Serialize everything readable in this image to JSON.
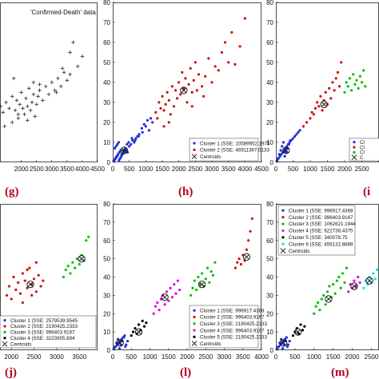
{
  "chart_data": [
    {
      "panel": "g",
      "type": "scatter",
      "caption": "(g)",
      "annotation": "'Confirmed-Death' data",
      "xticks": [
        "2000",
        "2500",
        "3000",
        "3500",
        "4000",
        "4500"
      ],
      "yticks": [],
      "xlim": [
        1300,
        4500
      ],
      "ylim": [
        0,
        80
      ],
      "marker": "plus",
      "series": [
        {
          "name": "",
          "color": "#222222",
          "x": [
            1320,
            1400,
            1500,
            1600,
            1700,
            1800,
            1850,
            1900,
            1950,
            2000,
            2050,
            2100,
            2150,
            2200,
            2250,
            2300,
            2350,
            2400,
            2450,
            2500,
            2550,
            2600,
            2700,
            2800,
            2900,
            3000,
            3100,
            3200,
            3300,
            3400,
            3500,
            3600,
            3700,
            3850,
            4000,
            1700,
            1900,
            2200,
            2400,
            2600,
            3150,
            3350,
            3600,
            1450,
            1750
          ],
          "y": [
            28,
            25,
            30,
            27,
            33,
            26,
            31,
            22,
            29,
            35,
            27,
            24,
            32,
            28,
            37,
            26,
            30,
            34,
            23,
            29,
            33,
            36,
            31,
            38,
            34,
            40,
            36,
            42,
            38,
            45,
            41,
            55,
            60,
            48,
            53,
            20,
            24,
            21,
            40,
            39,
            35,
            47,
            44,
            18,
            42
          ]
        }
      ]
    },
    {
      "panel": "h",
      "type": "scatter",
      "caption": "(h)",
      "xticks": [
        "0",
        "500",
        "1000",
        "1500",
        "2000",
        "2500",
        "3000",
        "3500",
        "4000",
        "4500"
      ],
      "yticks": [
        "0",
        "10",
        "20",
        "30",
        "40",
        "50",
        "60",
        "70",
        "80"
      ],
      "xlim": [
        0,
        4500
      ],
      "ylim": [
        0,
        80
      ],
      "legend_position": "bottom-right",
      "series": [
        {
          "name": "Cluster 1 (SSE: 10589652.1975",
          "color": "#1f2fd0",
          "x": [
            40,
            80,
            120,
            160,
            200,
            240,
            60,
            100,
            140,
            180,
            220,
            260,
            300,
            350,
            400,
            450,
            500,
            550,
            600,
            650,
            700,
            750,
            800,
            900,
            1000,
            1100,
            1200,
            30,
            70,
            110,
            150,
            190,
            230,
            270,
            320,
            380,
            430,
            480,
            580,
            680,
            780,
            880,
            950,
            1050,
            1150
          ],
          "y": [
            1,
            2,
            3,
            4,
            5,
            6,
            7,
            8,
            9,
            10,
            2,
            3,
            4,
            5,
            6,
            5,
            8,
            9,
            11,
            10,
            12,
            13,
            14,
            15,
            18,
            16,
            20,
            0.5,
            1.5,
            2.5,
            3.5,
            1,
            2,
            4,
            6,
            7,
            9,
            10,
            12,
            11,
            13,
            17,
            19,
            21,
            22
          ]
        },
        {
          "name": "Cluster 2 (SSE: 46911367.0133",
          "color": "#d01010",
          "x": [
            1300,
            1350,
            1400,
            1450,
            1500,
            1550,
            1600,
            1650,
            1700,
            1750,
            1800,
            1850,
            1900,
            1950,
            2000,
            2050,
            2100,
            2150,
            2200,
            2250,
            2300,
            2350,
            2400,
            2450,
            2500,
            2550,
            2600,
            2700,
            2800,
            2900,
            3000,
            3100,
            3200,
            3300,
            3400,
            3500,
            3600,
            3700,
            3850,
            4000,
            1550,
            1700,
            2400,
            2750
          ],
          "y": [
            25,
            22,
            30,
            27,
            33,
            26,
            29,
            35,
            31,
            24,
            38,
            28,
            36,
            32,
            40,
            34,
            45,
            37,
            42,
            30,
            39,
            47,
            35,
            41,
            50,
            36,
            44,
            38,
            43,
            52,
            40,
            48,
            46,
            55,
            60,
            50,
            65,
            49,
            58,
            72,
            18,
            20,
            28,
            33
          ]
        }
      ],
      "centroids_label": "Centroids",
      "centroids": [
        {
          "x": 350,
          "y": 6
        },
        {
          "x": 2150,
          "y": 36
        }
      ]
    },
    {
      "panel": "i",
      "type": "scatter",
      "caption": "(i",
      "xticks": [
        "0",
        "500",
        "1000",
        "1500",
        "2000",
        "2500"
      ],
      "yticks": [
        "0",
        "10",
        "20",
        "30",
        "40",
        "50",
        "60",
        "70",
        "80"
      ],
      "xlim": [
        0,
        3000
      ],
      "ylim": [
        0,
        80
      ],
      "legend_position": "bottom-right",
      "series": [
        {
          "name": "Cl",
          "color": "#1f2fd0",
          "x": [
            40,
            80,
            120,
            160,
            200,
            240,
            280,
            320,
            360,
            400,
            450,
            500,
            550,
            600,
            650,
            700,
            60,
            100,
            140,
            180,
            220,
            260,
            300,
            340,
            380,
            420
          ],
          "y": [
            1,
            2,
            3,
            4,
            5,
            6,
            7,
            8,
            9,
            10,
            11,
            12,
            13,
            14,
            15,
            16,
            2,
            4,
            6,
            8,
            10,
            3,
            5,
            7,
            9,
            11
          ]
        },
        {
          "name": "Cl",
          "color": "#d01010",
          "x": [
            800,
            900,
            1000,
            1050,
            1100,
            1150,
            1200,
            1250,
            1300,
            1350,
            1400,
            1450,
            1500,
            1550,
            1600,
            1650,
            1700,
            1750,
            1800,
            1850,
            1900
          ],
          "y": [
            18,
            20,
            22,
            25,
            24,
            27,
            30,
            28,
            33,
            26,
            31,
            35,
            29,
            37,
            32,
            40,
            36,
            42,
            45,
            38,
            50
          ]
        },
        {
          "name": "Cl",
          "color": "#00c000",
          "x": [
            2000,
            2050,
            2100,
            2150,
            2200,
            2250,
            2300,
            2350,
            2400,
            2450,
            2500,
            2550,
            2600
          ],
          "y": [
            35,
            40,
            38,
            42,
            36,
            44,
            39,
            41,
            37,
            43,
            40,
            46,
            38
          ]
        }
      ],
      "centroids_label": "C",
      "centroids": [
        {
          "x": 300,
          "y": 6
        },
        {
          "x": 1400,
          "y": 29
        }
      ]
    },
    {
      "panel": "j",
      "type": "scatter",
      "caption": "(j)",
      "xticks": [
        "2000",
        "2500",
        "3000",
        "3500"
      ],
      "yticks": [],
      "xlim": [
        1750,
        3900
      ],
      "ylim": [
        0,
        80
      ],
      "legend_position": "bottom-right",
      "series": [
        {
          "name": "Cluster 1 (SSE: 2579539.9545",
          "color": "#1f2fd0",
          "x": [
            1780,
            1800,
            1820
          ],
          "y": [
            10,
            14,
            6
          ]
        },
        {
          "name": "Cluster 2 (SSE: 2190425.2333",
          "color": "#d01010",
          "x": [
            1900,
            1950,
            2000,
            2050,
            2100,
            2150,
            2200,
            2250,
            2300,
            2350,
            2400,
            2450,
            2500,
            2550,
            2600,
            2650,
            2700,
            2250,
            2350,
            2450,
            2550
          ],
          "y": [
            30,
            35,
            28,
            40,
            33,
            37,
            31,
            42,
            38,
            34,
            45,
            36,
            39,
            32,
            41,
            35,
            38,
            26,
            44,
            30,
            48
          ]
        },
        {
          "name": "Cluster 3 (SSE: 996403.9167",
          "color": "#00c000",
          "x": [
            3150,
            3200,
            3250,
            3300,
            3350,
            3400,
            3450,
            3500,
            3550,
            3600,
            3650,
            3700
          ],
          "y": [
            40,
            44,
            46,
            42,
            48,
            45,
            50,
            47,
            52,
            49,
            60,
            62
          ]
        },
        {
          "name": "Cluster 4 (SSE: 3223905.894",
          "color": "#000000",
          "x": [],
          "y": []
        }
      ],
      "centroids_label": "Centroids",
      "centroids": [
        {
          "x": 2420,
          "y": 36
        },
        {
          "x": 3550,
          "y": 50
        }
      ]
    },
    {
      "panel": "l",
      "type": "scatter",
      "caption": "(l)",
      "xticks": [
        "0",
        "500",
        "1000",
        "1500",
        "2000",
        "2500",
        "3000",
        "3500",
        "4000"
      ],
      "yticks": [
        "0",
        "10",
        "20",
        "30",
        "40",
        "50",
        "60",
        "70",
        "80"
      ],
      "xlim": [
        0,
        4000
      ],
      "ylim": [
        0,
        80
      ],
      "legend_position": "bottom-right",
      "series": [
        {
          "name": "Cluster 1 (SSE: 996917.4368",
          "color": "#1f2fd0",
          "x": [
            40,
            80,
            120,
            160,
            200,
            240,
            280,
            320,
            360,
            400,
            60,
            100,
            140,
            180,
            220,
            260,
            300,
            340
          ],
          "y": [
            1,
            2,
            3,
            4,
            5,
            6,
            7,
            8,
            3,
            5,
            2,
            4,
            6,
            1,
            3,
            5,
            7,
            2
          ]
        },
        {
          "name": "Cluster 2 (SSE: 996403.9167",
          "color": "#d01010",
          "x": [
            3300,
            3350,
            3400,
            3450,
            3500,
            3550,
            3600,
            3650,
            3700,
            3750
          ],
          "y": [
            45,
            48,
            50,
            47,
            52,
            49,
            55,
            60,
            65,
            72
          ]
        },
        {
          "name": "Cluster 3 (SSE: 2190425.2333",
          "color": "#00c000",
          "x": [
            2100,
            2150,
            2200,
            2250,
            2300,
            2350,
            2400,
            2450,
            2500,
            2550,
            2600,
            2650,
            2700,
            2750
          ],
          "y": [
            30,
            34,
            38,
            33,
            40,
            36,
            42,
            35,
            39,
            45,
            37,
            43,
            41,
            48
          ]
        },
        {
          "name": "Cluster 4 (SSE: 996403.9167",
          "color": "#e000e0",
          "x": [
            1100,
            1150,
            1200,
            1250,
            1300,
            1350,
            1400,
            1450,
            1500,
            1550,
            1600,
            1650,
            1700,
            1750,
            1800
          ],
          "y": [
            20,
            24,
            26,
            22,
            28,
            30,
            25,
            32,
            27,
            34,
            29,
            36,
            31,
            38,
            33
          ]
        },
        {
          "name": "Cluster 5 (SSE: 2190425.2333",
          "color": "#000000",
          "x": [
            500,
            550,
            600,
            650,
            700,
            750,
            800,
            850,
            900
          ],
          "y": [
            8,
            10,
            12,
            9,
            14,
            11,
            16,
            13,
            15
          ]
        }
      ],
      "centroids_label": "Centroids",
      "centroids": [
        {
          "x": 200,
          "y": 4
        },
        {
          "x": 700,
          "y": 10
        },
        {
          "x": 1400,
          "y": 29
        },
        {
          "x": 2400,
          "y": 36
        },
        {
          "x": 3600,
          "y": 51
        }
      ]
    },
    {
      "panel": "m",
      "type": "scatter",
      "caption": "(m)",
      "xticks": [
        "0",
        "500",
        "1000",
        "1500",
        "2000",
        "2500"
      ],
      "yticks": [
        "0",
        "10",
        "20",
        "30",
        "40",
        "50",
        "60",
        "70",
        "80"
      ],
      "xlim": [
        0,
        2700
      ],
      "ylim": [
        0,
        80
      ],
      "legend_position": "top-left",
      "series": [
        {
          "name": "Cluster 1 (SSE: 996917.4368",
          "color": "#1f2fd0",
          "x": [
            40,
            80,
            120,
            160,
            200,
            240,
            280,
            320,
            360,
            60,
            100,
            140,
            180,
            220,
            260,
            300
          ],
          "y": [
            1,
            2,
            3,
            4,
            5,
            6,
            7,
            3,
            5,
            2,
            4,
            6,
            1,
            3,
            5,
            2
          ]
        },
        {
          "name": "Cluster 2 (SSE: 996403.9167",
          "color": "#d01010",
          "x": [],
          "y": []
        },
        {
          "name": "Cluster 3 (SSE: 1062621.1944",
          "color": "#00c000",
          "x": [
            1000,
            1050,
            1100,
            1150,
            1200,
            1250,
            1300,
            1350,
            1400,
            1450,
            1500,
            1550,
            1600,
            1650,
            1700,
            1750,
            1800,
            1850
          ],
          "y": [
            20,
            24,
            26,
            22,
            28,
            30,
            25,
            32,
            35,
            29,
            36,
            31,
            38,
            40,
            34,
            42,
            37,
            45
          ]
        },
        {
          "name": "Cluster 4 (SSE: 622738.4375",
          "color": "#e000e0",
          "x": [
            1900,
            1950,
            2000,
            2050,
            2100,
            2150,
            2200
          ],
          "y": [
            32,
            36,
            34,
            38,
            35,
            40,
            37
          ]
        },
        {
          "name": "Cluster 5 (SSE: 340078.75",
          "color": "#000000",
          "x": [
            450,
            500,
            550,
            600,
            650,
            700,
            750
          ],
          "y": [
            8,
            10,
            12,
            9,
            14,
            11,
            13
          ]
        },
        {
          "name": "Cluster 6 (SSE: 456132.8889",
          "color": "#00e0e0",
          "x": [
            2300,
            2350,
            2400,
            2450,
            2500,
            2550,
            2600,
            2650
          ],
          "y": [
            34,
            38,
            36,
            40,
            37,
            42,
            39,
            44
          ]
        }
      ],
      "centroids_label": "Centroids",
      "centroids": [
        {
          "x": 200,
          "y": 4
        },
        {
          "x": 580,
          "y": 10
        },
        {
          "x": 1380,
          "y": 28
        },
        {
          "x": 2050,
          "y": 35
        },
        {
          "x": 2450,
          "y": 38
        }
      ]
    }
  ]
}
